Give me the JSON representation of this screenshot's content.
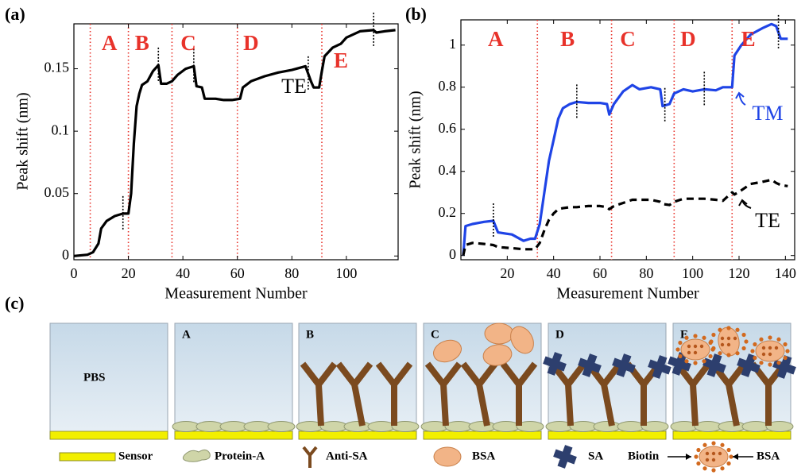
{
  "chart_data": [
    {
      "type": "line",
      "panel": "(a)",
      "xlabel": "Measurement Number",
      "ylabel": "Peak shift (nm)",
      "x": [
        0,
        5,
        7,
        9,
        10,
        12,
        15,
        18,
        20,
        21,
        22,
        23,
        24,
        25,
        27,
        29,
        31,
        32,
        34,
        36,
        38,
        41,
        44,
        45,
        47,
        48,
        52,
        55,
        58,
        61,
        62,
        65,
        70,
        75,
        80,
        85,
        87,
        88,
        90,
        91,
        92,
        95,
        98,
        100,
        105,
        110,
        111,
        114,
        118
      ],
      "series": [
        {
          "name": "TE",
          "color": "#000000",
          "style": "solid",
          "values": [
            0,
            0.001,
            0.003,
            0.01,
            0.022,
            0.028,
            0.032,
            0.034,
            0.034,
            0.05,
            0.09,
            0.12,
            0.13,
            0.137,
            0.14,
            0.148,
            0.153,
            0.138,
            0.138,
            0.14,
            0.145,
            0.15,
            0.152,
            0.136,
            0.135,
            0.126,
            0.126,
            0.125,
            0.125,
            0.126,
            0.135,
            0.14,
            0.144,
            0.147,
            0.149,
            0.152,
            0.14,
            0.135,
            0.135,
            0.148,
            0.16,
            0.167,
            0.17,
            0.175,
            0.18,
            0.181,
            0.179,
            0.18,
            0.181
          ]
        }
      ],
      "xlim": [
        0,
        119
      ],
      "ylim": [
        -0.003,
        0.186
      ],
      "xticks": [
        0,
        20,
        40,
        60,
        80,
        100
      ],
      "yticks": [
        0,
        0.05,
        0.1,
        0.15
      ],
      "region_lines": [
        6,
        20,
        36,
        60,
        91
      ],
      "region_color": "#e8322a",
      "region_labels": [
        {
          "text": "A",
          "x": 13
        },
        {
          "text": "B",
          "x": 25
        },
        {
          "text": "C",
          "x": 42
        },
        {
          "text": "D",
          "x": 65
        },
        {
          "text": "E",
          "x": 98
        }
      ],
      "event_markers": [
        18,
        31,
        44,
        86,
        110
      ]
    },
    {
      "type": "line",
      "panel": "(b)",
      "xlabel": "Measurement Number",
      "ylabel": "Peak shift (nm)",
      "x": [
        1,
        2,
        5,
        10,
        14,
        16,
        22,
        27,
        30,
        32,
        34,
        36,
        38,
        40,
        42,
        44,
        47,
        50,
        55,
        60,
        63,
        64,
        66,
        70,
        74,
        77,
        82,
        86,
        87,
        90,
        92,
        96,
        100,
        105,
        110,
        113,
        117,
        118,
        121,
        125,
        130,
        134,
        136,
        138,
        141
      ],
      "series": [
        {
          "name": "TM",
          "color": "#1f44e6",
          "style": "solid",
          "values": [
            0,
            0.14,
            0.15,
            0.16,
            0.165,
            0.11,
            0.1,
            0.07,
            0.08,
            0.08,
            0.15,
            0.3,
            0.45,
            0.55,
            0.65,
            0.7,
            0.72,
            0.73,
            0.725,
            0.725,
            0.72,
            0.67,
            0.72,
            0.78,
            0.81,
            0.79,
            0.8,
            0.79,
            0.71,
            0.72,
            0.77,
            0.79,
            0.78,
            0.79,
            0.785,
            0.8,
            0.8,
            0.95,
            1,
            1.05,
            1.08,
            1.1,
            1.09,
            1.03,
            1.03
          ]
        },
        {
          "name": "TE",
          "color": "#000000",
          "style": "dashed",
          "values": [
            0,
            0.05,
            0.06,
            0.055,
            0.05,
            0.04,
            0.035,
            0.03,
            0.03,
            0.03,
            0.06,
            0.12,
            0.17,
            0.2,
            0.22,
            0.225,
            0.23,
            0.23,
            0.235,
            0.235,
            0.23,
            0.22,
            0.235,
            0.25,
            0.265,
            0.265,
            0.265,
            0.255,
            0.245,
            0.24,
            0.255,
            0.27,
            0.27,
            0.27,
            0.265,
            0.26,
            0.3,
            0.29,
            0.31,
            0.34,
            0.35,
            0.36,
            0.345,
            0.335,
            0.33
          ]
        }
      ],
      "xlim": [
        0,
        144
      ],
      "ylim": [
        -0.02,
        1.12
      ],
      "xticks": [
        20,
        40,
        60,
        80,
        100,
        120,
        140
      ],
      "yticks": [
        0,
        0.2,
        0.4,
        0.6,
        0.8,
        1
      ],
      "region_lines": [
        33,
        65,
        92,
        117
      ],
      "region_color": "#e8322a",
      "region_labels": [
        {
          "text": "A",
          "x": 15
        },
        {
          "text": "B",
          "x": 46
        },
        {
          "text": "C",
          "x": 72
        },
        {
          "text": "D",
          "x": 98
        },
        {
          "text": "E",
          "x": 124
        }
      ],
      "event_markers": [
        14,
        50,
        88,
        105,
        137
      ]
    }
  ],
  "diagram": {
    "label": "(c)",
    "medium": "PBS",
    "panels": [
      "A",
      "B",
      "C",
      "D",
      "E"
    ],
    "legend": [
      "Sensor",
      "Protein-A",
      "Anti-SA",
      "BSA",
      "SA"
    ],
    "biotin_legend": {
      "left": "Biotin",
      "right": "BSA"
    }
  }
}
